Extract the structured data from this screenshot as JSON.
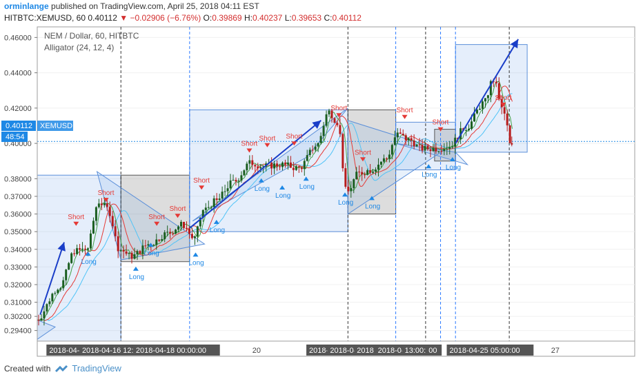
{
  "header": {
    "author": "orminlange",
    "published_text": " published on TradingView.com, April 25, 2018 04:11 EST",
    "symbol": "HITBTC:XEMUSD, 60",
    "last": "0.40112",
    "change": "−0.02906 (−6.76%)",
    "o_label": "O:",
    "o": "0.39869",
    "h_label": "H:",
    "h": "0.40237",
    "l_label": "L:",
    "l": "0.39653",
    "c_label": "C:",
    "c": "0.40112"
  },
  "legend": {
    "title": "NEM / Dollar, 60, HITBTC",
    "indicator": "Alligator (24, 12, 4)"
  },
  "badges": {
    "price": "0.40112",
    "symbol": "XEMUSD",
    "countdown": "48:54"
  },
  "colors": {
    "up": "#26a69a",
    "down": "#ef5350",
    "candle_up": "#1b5e20",
    "candle_down": "#b71c1c",
    "box_blue": "rgba(110,160,235,0.18)",
    "box_gray": "rgba(120,120,120,0.25)",
    "blue_line": "#1a3ec8",
    "lime_line": "#43a047",
    "red_line": "#e53935",
    "teal_line": "#4fc3f7",
    "signal_short": "#e53935",
    "signal_long": "#1e88e5"
  },
  "chart_data": {
    "type": "candlestick",
    "y_ticks": [
      "0.46000",
      "0.44000",
      "0.42000",
      "0.40000",
      "0.38000",
      "0.37000",
      "0.36000",
      "0.35000",
      "0.34000",
      "0.33000",
      "0.32000",
      "0.31000",
      "0.30200",
      "0.29400"
    ],
    "ylim": [
      0.288,
      0.466
    ],
    "x_labels": [
      {
        "t": 0.02,
        "text": "2018-04-10 1",
        "tag": true
      },
      {
        "t": 0.075,
        "text": "2018-04-16 12:00:00",
        "tag": true
      },
      {
        "t": 0.165,
        "text": "2018-04-18 00:00:00",
        "tag": true
      },
      {
        "t": 0.36,
        "text": "20",
        "tag": false
      },
      {
        "t": 0.455,
        "text": "2018-04-21 09:0",
        "tag": true
      },
      {
        "t": 0.49,
        "text": "2018-04-",
        "tag": true
      },
      {
        "t": 0.535,
        "text": "2018",
        "tag": true
      },
      {
        "t": 0.57,
        "text": "2018-04-23",
        "tag": true
      },
      {
        "t": 0.615,
        "text": "13:00:00",
        "tag": true
      },
      {
        "t": 0.655,
        "text": "00",
        "tag": true
      },
      {
        "t": 0.69,
        "text": "2018-04-25 05:00:00",
        "tag": true
      },
      {
        "t": 0.86,
        "text": "27",
        "tag": false
      }
    ],
    "signals": [
      {
        "type": "Short",
        "t": 0.065,
        "p": 0.3525
      },
      {
        "type": "Long",
        "t": 0.085,
        "p": 0.3395
      },
      {
        "type": "Short",
        "t": 0.115,
        "p": 0.366
      },
      {
        "type": "Long",
        "t": 0.165,
        "p": 0.331
      },
      {
        "type": "Long",
        "t": 0.19,
        "p": 0.3445
      },
      {
        "type": "Short",
        "t": 0.2,
        "p": 0.3525
      },
      {
        "type": "Short",
        "t": 0.235,
        "p": 0.357
      },
      {
        "type": "Long",
        "t": 0.265,
        "p": 0.339
      },
      {
        "type": "Short",
        "t": 0.275,
        "p": 0.373
      },
      {
        "type": "Long",
        "t": 0.3,
        "p": 0.3575
      },
      {
        "type": "Short",
        "t": 0.355,
        "p": 0.394
      },
      {
        "type": "Long",
        "t": 0.375,
        "p": 0.381
      },
      {
        "type": "Short",
        "t": 0.385,
        "p": 0.397
      },
      {
        "type": "Long",
        "t": 0.41,
        "p": 0.377
      },
      {
        "type": "Short",
        "t": 0.43,
        "p": 0.398
      },
      {
        "type": "Long",
        "t": 0.45,
        "p": 0.382
      },
      {
        "type": "Short",
        "t": 0.505,
        "p": 0.414
      },
      {
        "type": "Long",
        "t": 0.515,
        "p": 0.373
      },
      {
        "type": "Short",
        "t": 0.545,
        "p": 0.389
      },
      {
        "type": "Long",
        "t": 0.56,
        "p": 0.371
      },
      {
        "type": "Short",
        "t": 0.615,
        "p": 0.413
      },
      {
        "type": "Long",
        "t": 0.655,
        "p": 0.389
      },
      {
        "type": "Short",
        "t": 0.675,
        "p": 0.406
      },
      {
        "type": "Long",
        "t": 0.695,
        "p": 0.393
      },
      {
        "type": "Short",
        "t": 0.78,
        "p": 0.42
      }
    ],
    "series": [
      {
        "name": "",
        "anchors": [
          [
            0,
            0.3
          ],
          [
            0.04,
            0.319
          ],
          [
            0.065,
            0.339
          ],
          [
            0.085,
            0.34
          ],
          [
            0.105,
            0.367
          ],
          [
            0.12,
            0.363
          ],
          [
            0.14,
            0.34
          ],
          [
            0.16,
            0.336
          ],
          [
            0.19,
            0.343
          ],
          [
            0.22,
            0.349
          ],
          [
            0.245,
            0.354
          ],
          [
            0.265,
            0.346
          ],
          [
            0.28,
            0.362
          ],
          [
            0.3,
            0.367
          ],
          [
            0.33,
            0.378
          ],
          [
            0.36,
            0.389
          ],
          [
            0.38,
            0.387
          ],
          [
            0.41,
            0.388
          ],
          [
            0.44,
            0.386
          ],
          [
            0.47,
            0.399
          ],
          [
            0.49,
            0.418
          ],
          [
            0.505,
            0.412
          ],
          [
            0.52,
            0.372
          ],
          [
            0.54,
            0.383
          ],
          [
            0.56,
            0.385
          ],
          [
            0.585,
            0.391
          ],
          [
            0.605,
            0.405
          ],
          [
            0.625,
            0.402
          ],
          [
            0.645,
            0.397
          ],
          [
            0.665,
            0.397
          ],
          [
            0.69,
            0.398
          ],
          [
            0.72,
            0.409
          ],
          [
            0.75,
            0.423
          ],
          [
            0.765,
            0.436
          ],
          [
            0.785,
            0.416
          ],
          [
            0.795,
            0.398
          ]
        ]
      }
    ]
  },
  "footer": {
    "created_with": "Created with",
    "brand": "TradingView"
  }
}
